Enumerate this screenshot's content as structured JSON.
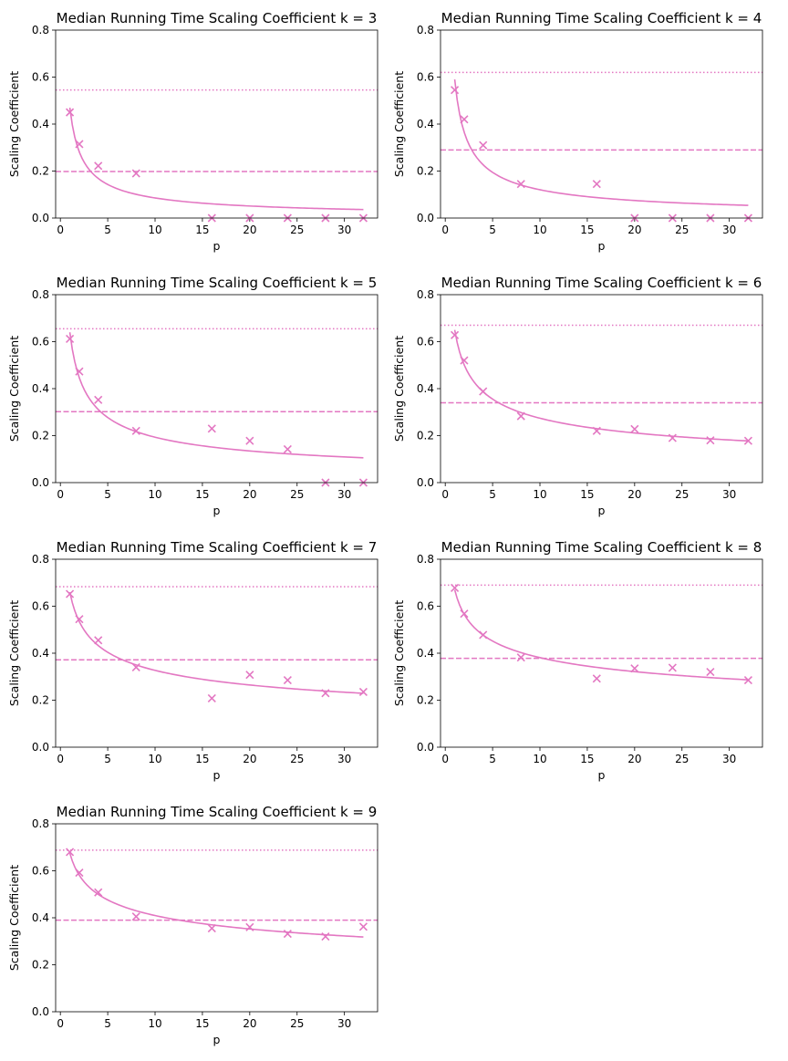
{
  "chart_data": [
    {
      "type": "scatter",
      "title": "Median Running Time Scaling Coefficient k = 3",
      "xlabel": "p",
      "ylabel": "Scaling Coefficient",
      "xlim": [
        -0.5,
        33.5
      ],
      "ylim": [
        0,
        0.8
      ],
      "xticks": [
        0,
        5,
        10,
        15,
        20,
        25,
        30
      ],
      "yticks": [
        0.0,
        0.2,
        0.4,
        0.6,
        0.8
      ],
      "color": "#e377c2",
      "points": {
        "x": [
          1,
          2,
          4,
          8,
          16,
          20,
          24,
          28,
          32
        ],
        "y": [
          0.45,
          0.315,
          0.222,
          0.19,
          0.0,
          0.0,
          0.0,
          0.0,
          0.0
        ]
      },
      "fit_curve": {
        "x_range": [
          1,
          32
        ],
        "a": 0.47,
        "b": 0.74
      },
      "dotted_line_y": 0.545,
      "dashed_line_y": 0.198,
      "grid": false
    },
    {
      "type": "scatter",
      "title": "Median Running Time Scaling Coefficient k = 4",
      "xlabel": "p",
      "ylabel": "Scaling Coefficient",
      "xlim": [
        -0.5,
        33.5
      ],
      "ylim": [
        0,
        0.8
      ],
      "xticks": [
        0,
        5,
        10,
        15,
        20,
        25,
        30
      ],
      "yticks": [
        0.0,
        0.2,
        0.4,
        0.6,
        0.8
      ],
      "color": "#e377c2",
      "points": {
        "x": [
          1,
          2,
          4,
          8,
          16,
          20,
          24,
          28,
          32
        ],
        "y": [
          0.545,
          0.42,
          0.31,
          0.145,
          0.145,
          0.0,
          0.0,
          0.0,
          0.0
        ]
      },
      "fit_curve": {
        "x_range": [
          1,
          32
        ],
        "a": 0.59,
        "b": 0.69
      },
      "dotted_line_y": 0.62,
      "dashed_line_y": 0.29,
      "grid": false
    },
    {
      "type": "scatter",
      "title": "Median Running Time Scaling Coefficient k = 5",
      "xlabel": "p",
      "ylabel": "Scaling Coefficient",
      "xlim": [
        -0.5,
        33.5
      ],
      "ylim": [
        0,
        0.8
      ],
      "xticks": [
        0,
        5,
        10,
        15,
        20,
        25,
        30
      ],
      "yticks": [
        0.0,
        0.2,
        0.4,
        0.6,
        0.8
      ],
      "color": "#e377c2",
      "points": {
        "x": [
          1,
          2,
          4,
          8,
          16,
          20,
          24,
          28,
          32
        ],
        "y": [
          0.612,
          0.473,
          0.352,
          0.22,
          0.23,
          0.178,
          0.142,
          0.0,
          0.0
        ]
      },
      "fit_curve": {
        "x_range": [
          1,
          32
        ],
        "a": 0.64,
        "b": 0.52
      },
      "dotted_line_y": 0.655,
      "dashed_line_y": 0.302,
      "grid": false
    },
    {
      "type": "scatter",
      "title": "Median Running Time Scaling Coefficient k = 6",
      "xlabel": "p",
      "ylabel": "Scaling Coefficient",
      "xlim": [
        -0.5,
        33.5
      ],
      "ylim": [
        0,
        0.8
      ],
      "xticks": [
        0,
        5,
        10,
        15,
        20,
        25,
        30
      ],
      "yticks": [
        0.0,
        0.2,
        0.4,
        0.6,
        0.8
      ],
      "color": "#e377c2",
      "points": {
        "x": [
          1,
          2,
          4,
          8,
          16,
          20,
          24,
          28,
          32
        ],
        "y": [
          0.628,
          0.52,
          0.388,
          0.283,
          0.22,
          0.228,
          0.19,
          0.18,
          0.178
        ]
      },
      "fit_curve": {
        "x_range": [
          1,
          32
        ],
        "a": 0.65,
        "b": 0.375
      },
      "dotted_line_y": 0.67,
      "dashed_line_y": 0.34,
      "grid": false
    },
    {
      "type": "scatter",
      "title": "Median Running Time Scaling Coefficient k = 7",
      "xlabel": "p",
      "ylabel": "Scaling Coefficient",
      "xlim": [
        -0.5,
        33.5
      ],
      "ylim": [
        0,
        0.8
      ],
      "xticks": [
        0,
        5,
        10,
        15,
        20,
        25,
        30
      ],
      "yticks": [
        0.0,
        0.2,
        0.4,
        0.6,
        0.8
      ],
      "color": "#e377c2",
      "points": {
        "x": [
          1,
          2,
          4,
          8,
          16,
          20,
          24,
          28,
          32
        ],
        "y": [
          0.652,
          0.545,
          0.455,
          0.34,
          0.208,
          0.308,
          0.285,
          0.23,
          0.235
        ]
      },
      "fit_curve": {
        "x_range": [
          1,
          32
        ],
        "a": 0.66,
        "b": 0.305
      },
      "dotted_line_y": 0.683,
      "dashed_line_y": 0.372,
      "grid": false
    },
    {
      "type": "scatter",
      "title": "Median Running Time Scaling Coefficient k = 8",
      "xlabel": "p",
      "ylabel": "Scaling Coefficient",
      "xlim": [
        -0.5,
        33.5
      ],
      "ylim": [
        0,
        0.8
      ],
      "xticks": [
        0,
        5,
        10,
        15,
        20,
        25,
        30
      ],
      "yticks": [
        0.0,
        0.2,
        0.4,
        0.6,
        0.8
      ],
      "color": "#e377c2",
      "points": {
        "x": [
          1,
          2,
          4,
          8,
          16,
          20,
          24,
          28,
          32
        ],
        "y": [
          0.678,
          0.568,
          0.478,
          0.382,
          0.292,
          0.335,
          0.338,
          0.32,
          0.285
        ]
      },
      "fit_curve": {
        "x_range": [
          1,
          32
        ],
        "a": 0.67,
        "b": 0.245
      },
      "dotted_line_y": 0.69,
      "dashed_line_y": 0.378,
      "grid": false
    },
    {
      "type": "scatter",
      "title": "Median Running Time Scaling Coefficient k = 9",
      "xlabel": "p",
      "ylabel": "Scaling Coefficient",
      "xlim": [
        -0.5,
        33.5
      ],
      "ylim": [
        0,
        0.8
      ],
      "xticks": [
        0,
        5,
        10,
        15,
        20,
        25,
        30
      ],
      "yticks": [
        0.0,
        0.2,
        0.4,
        0.6,
        0.8
      ],
      "color": "#e377c2",
      "points": {
        "x": [
          1,
          2,
          4,
          8,
          16,
          20,
          24,
          28,
          32
        ],
        "y": [
          0.68,
          0.592,
          0.508,
          0.405,
          0.355,
          0.36,
          0.332,
          0.32,
          0.362
        ]
      },
      "fit_curve": {
        "x_range": [
          1,
          32
        ],
        "a": 0.675,
        "b": 0.217
      },
      "dotted_line_y": 0.688,
      "dashed_line_y": 0.39,
      "grid": false
    }
  ]
}
